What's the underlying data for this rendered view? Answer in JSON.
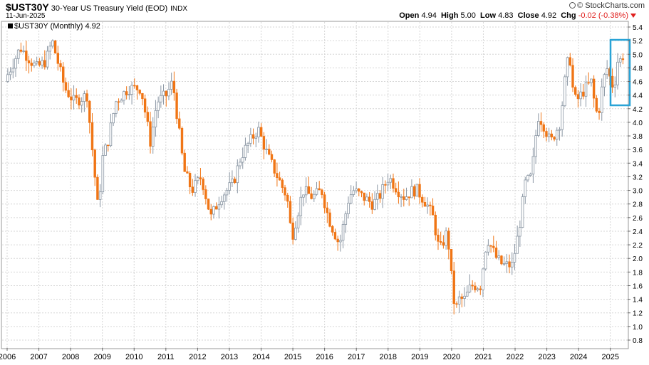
{
  "header": {
    "symbol": "$UST30Y",
    "description": "30-Year US Treasury Yield (EOD)",
    "exchange": "INDX",
    "date": "11-Jun-2025",
    "brand": "© StockCharts.com",
    "ohlc": {
      "open_label": "Open",
      "open_value": "4.94",
      "high_label": "High",
      "high_value": "5.00",
      "low_label": "Low",
      "low_value": "4.83",
      "close_label": "Close",
      "close_value": "4.92",
      "chg_label": "Chg",
      "chg_value": "-0.02 (-0.38%)"
    }
  },
  "legend": {
    "text": "$UST30Y (Monthly) 4.92"
  },
  "colors": {
    "up": "#8a96a3",
    "down": "#f07515",
    "grid": "#d6d6d6",
    "highlight": "#29a3d6"
  },
  "chart_data": {
    "type": "candlestick",
    "title": "$UST30Y (Monthly)",
    "x_tick_labels": [
      "2006",
      "2007",
      "2008",
      "2009",
      "2010",
      "2011",
      "2012",
      "2013",
      "2014",
      "2015",
      "2016",
      "2017",
      "2018",
      "2019",
      "2020",
      "2021",
      "2022",
      "2023",
      "2024",
      "2025"
    ],
    "y_tick_labels": [
      "0.8",
      "1.0",
      "1.2",
      "1.4",
      "1.6",
      "1.8",
      "2.0",
      "2.2",
      "2.4",
      "2.6",
      "2.8",
      "3.0",
      "3.2",
      "3.4",
      "3.6",
      "3.8",
      "4.0",
      "4.2",
      "4.4",
      "4.6",
      "4.8",
      "5.0",
      "5.2",
      "5.4"
    ],
    "ylim": [
      0.7,
      5.5
    ],
    "xlim": [
      2006.0,
      2025.5
    ],
    "y_axis_side": "right",
    "grid": true,
    "anchor_series": {
      "name": "$UST30Y",
      "t": [
        2006.0,
        2006.5,
        2007.0,
        2007.3,
        2007.5,
        2007.9,
        2008.2,
        2008.6,
        2008.95,
        2009.1,
        2009.25,
        2009.5,
        2009.9,
        2010.3,
        2010.6,
        2010.8,
        2011.1,
        2011.3,
        2011.65,
        2011.9,
        2012.2,
        2012.5,
        2012.8,
        2013.2,
        2013.45,
        2013.7,
        2013.99,
        2014.3,
        2014.6,
        2014.9,
        2015.05,
        2015.4,
        2015.7,
        2015.99,
        2016.2,
        2016.55,
        2016.85,
        2016.99,
        2017.3,
        2017.6,
        2017.8,
        2018.1,
        2018.4,
        2018.6,
        2018.85,
        2019.0,
        2019.3,
        2019.5,
        2019.7,
        2019.95,
        2020.1,
        2020.2,
        2020.3,
        2020.5,
        2020.7,
        2020.99,
        2021.2,
        2021.5,
        2021.7,
        2021.99,
        2022.2,
        2022.4,
        2022.6,
        2022.8,
        2022.95,
        2023.2,
        2023.5,
        2023.7,
        2023.8,
        2023.9,
        2024.0,
        2024.3,
        2024.5,
        2024.6,
        2024.7,
        2024.85,
        2024.99,
        2025.1,
        2025.2,
        2025.3,
        2025.45
      ],
      "v": [
        4.6,
        5.1,
        4.8,
        4.9,
        5.2,
        4.5,
        4.3,
        4.4,
        2.7,
        3.5,
        3.7,
        4.3,
        4.5,
        4.5,
        3.7,
        4.3,
        4.4,
        4.6,
        3.3,
        3.0,
        3.2,
        2.6,
        2.9,
        3.1,
        3.5,
        3.7,
        3.9,
        3.5,
        3.2,
        2.9,
        2.3,
        3.0,
        2.9,
        3.0,
        2.6,
        2.2,
        2.9,
        3.0,
        2.9,
        2.8,
        2.9,
        3.2,
        3.0,
        2.9,
        3.0,
        3.0,
        2.8,
        2.6,
        2.1,
        2.4,
        1.6,
        1.2,
        1.4,
        1.4,
        1.6,
        1.6,
        2.3,
        2.0,
        1.9,
        1.9,
        2.4,
        3.1,
        3.2,
        4.1,
        4.0,
        3.7,
        4.0,
        4.8,
        5.0,
        4.5,
        4.3,
        4.5,
        4.6,
        4.2,
        4.1,
        4.6,
        4.8,
        4.6,
        4.5,
        4.9,
        4.92
      ]
    },
    "last_value": 4.92
  }
}
